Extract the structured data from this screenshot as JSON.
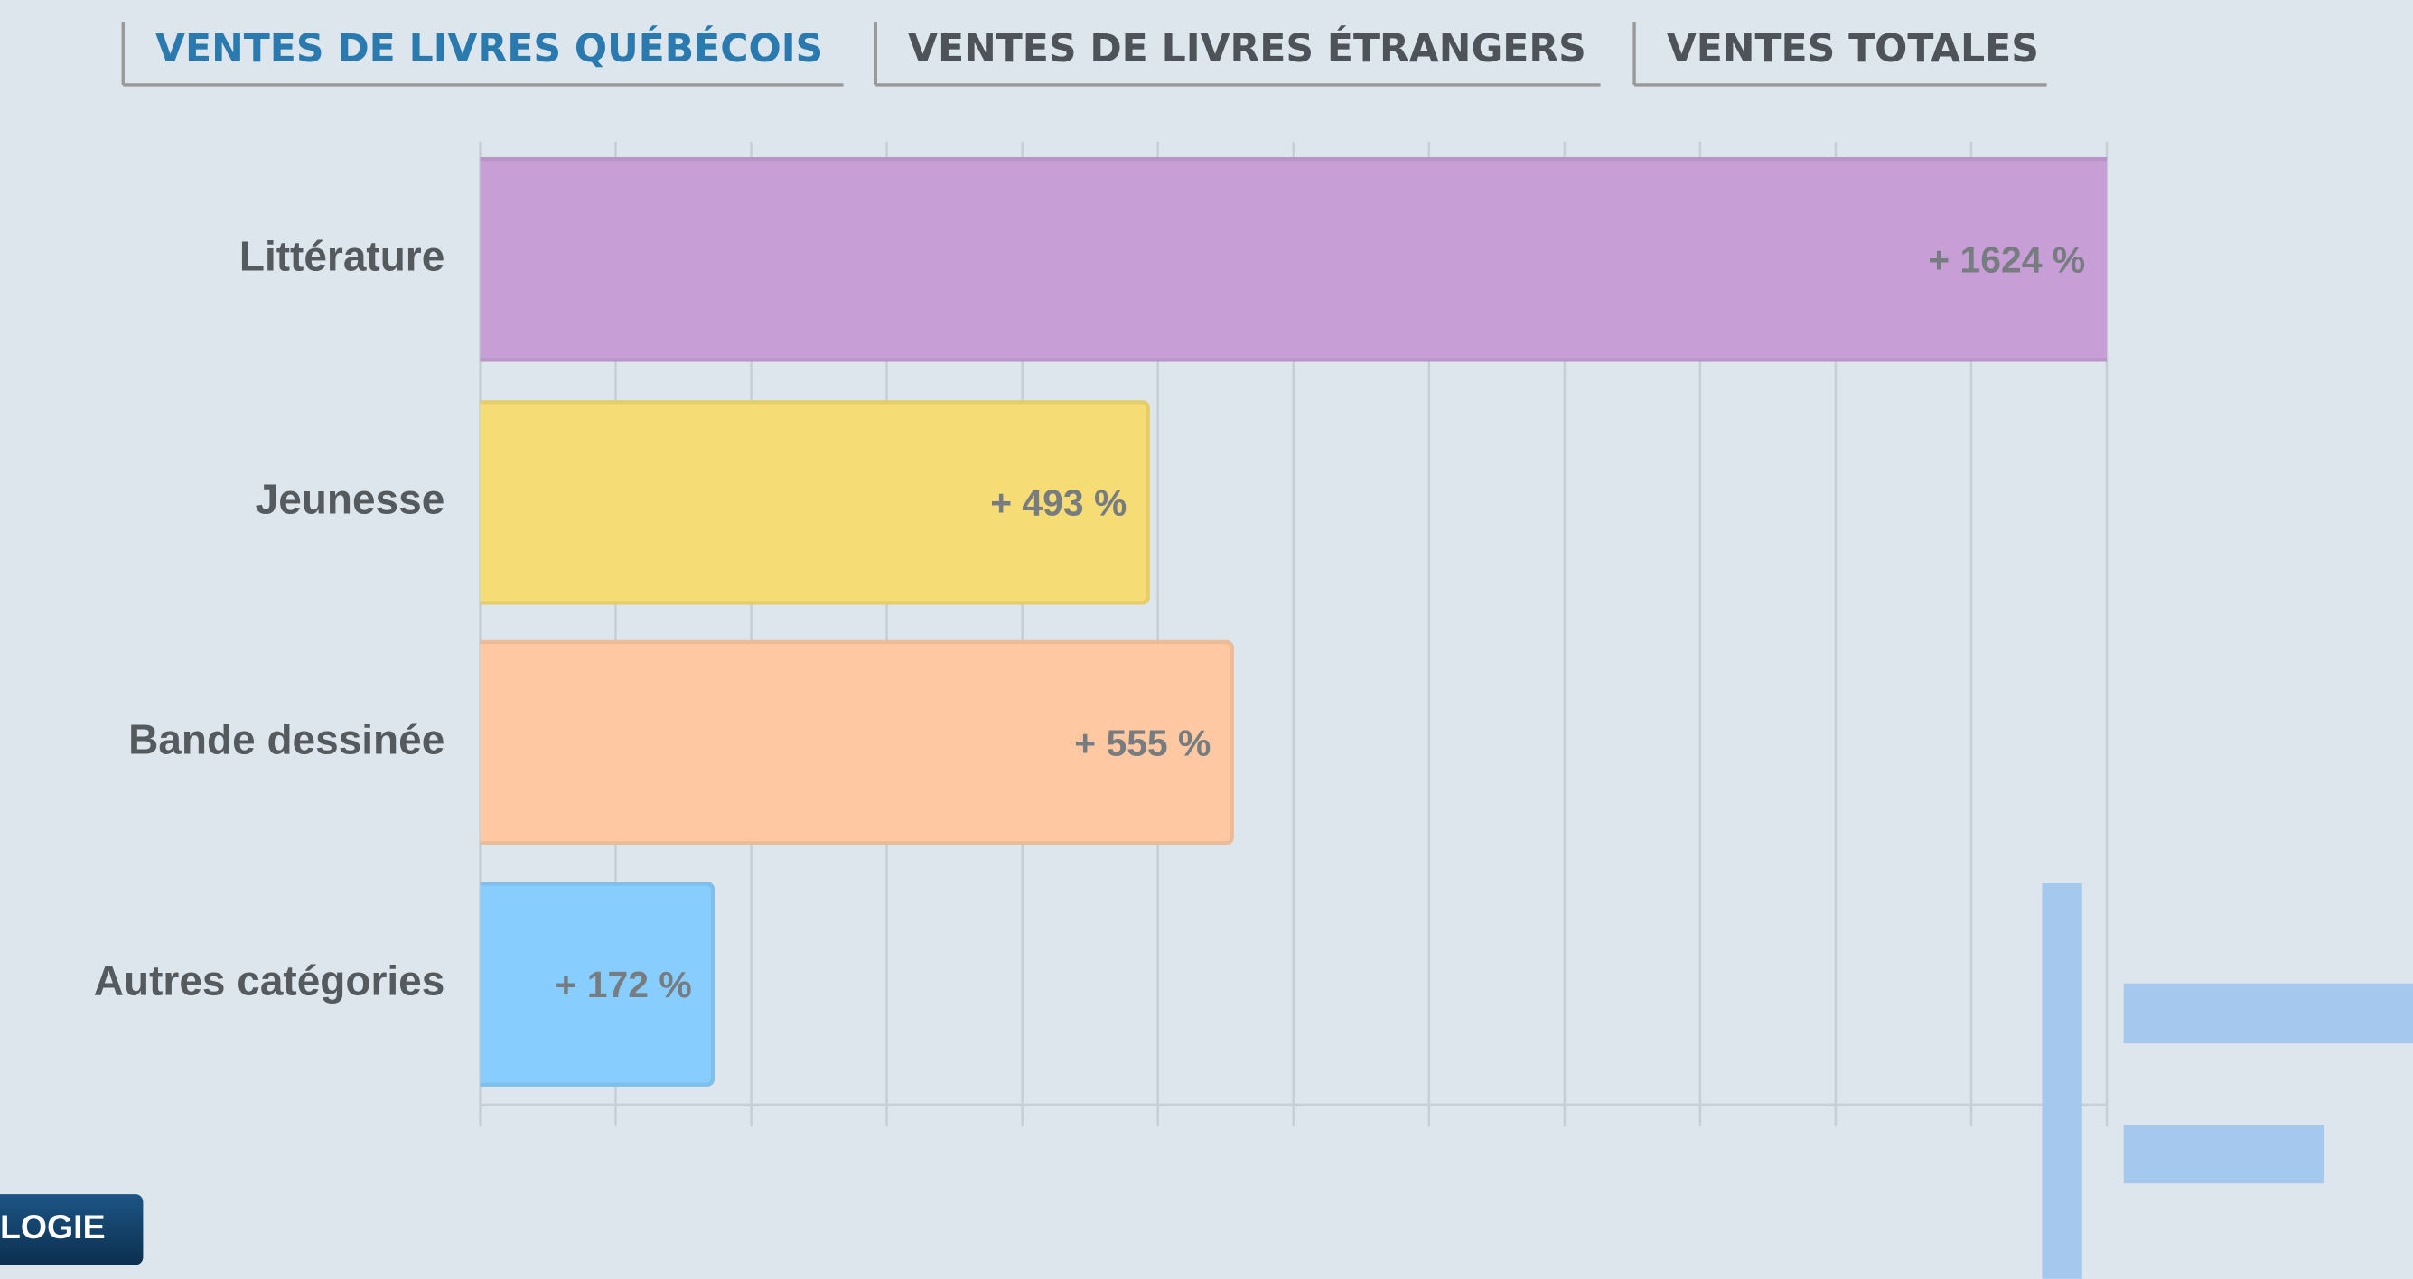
{
  "tabs": [
    "VENTES DE LIVRES QUÉBÉCOIS",
    "VENTES DE LIVRES ÉTRANGERS",
    "VENTES TOTALES"
  ],
  "button": "LOGIE",
  "chart_data": {
    "type": "barh",
    "categories": [
      "Littérature",
      "Jeunesse",
      "Bande dessinée",
      "Autres catégories"
    ],
    "values": [
      1624,
      493,
      555,
      172
    ],
    "value_labels": [
      "+ 1624 %",
      "+ 493 %",
      "+ 555 %",
      "+ 172 %"
    ],
    "colors": [
      "#c79fd6",
      "#f6dc74",
      "#fec9a2",
      "#87cdfd"
    ],
    "xlim": [
      0,
      1200
    ],
    "xticks": [
      0,
      100,
      200,
      300,
      400,
      500,
      600,
      700,
      800,
      900,
      1000,
      1100,
      1200
    ],
    "grid": true
  }
}
